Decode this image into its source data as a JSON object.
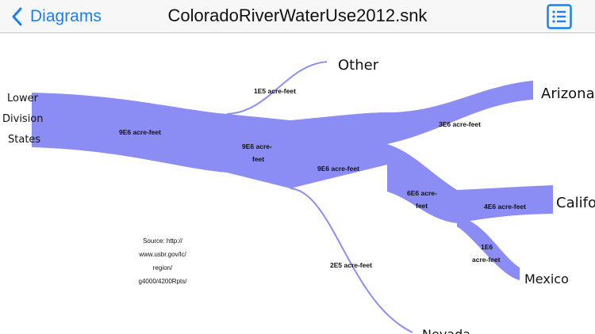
{
  "nav": {
    "back_label": "Diagrams",
    "title": "ColoradoRiverWaterUse2012.snk"
  },
  "colors": {
    "accent": "#1a7ff2",
    "flow": "#8c8cf5"
  },
  "nodes": {
    "lower_division": [
      "Lower",
      "Division",
      "States"
    ],
    "other": "Other",
    "arizona": "Arizona",
    "california": "Califor",
    "mexico": "Mexico",
    "nevada": "Nevada"
  },
  "flows": {
    "lower_total": "9E6 acre-feet",
    "other": "1E5 acre-feet",
    "junction1": [
      "9E6 acre-",
      "feet"
    ],
    "main": "9E6 acre-feet",
    "arizona": "3E6 acre-feet",
    "junction2": [
      "6E6 acre-",
      "feet"
    ],
    "california": "4E6 acre-feet",
    "mexico": [
      "1E6",
      "acre-feet"
    ],
    "nevada": "2E5 acre-feet"
  },
  "source_note": [
    "Source: http://",
    "www.usbr.gov/lc/",
    "region/",
    "g4000/4200Rpts/"
  ]
}
